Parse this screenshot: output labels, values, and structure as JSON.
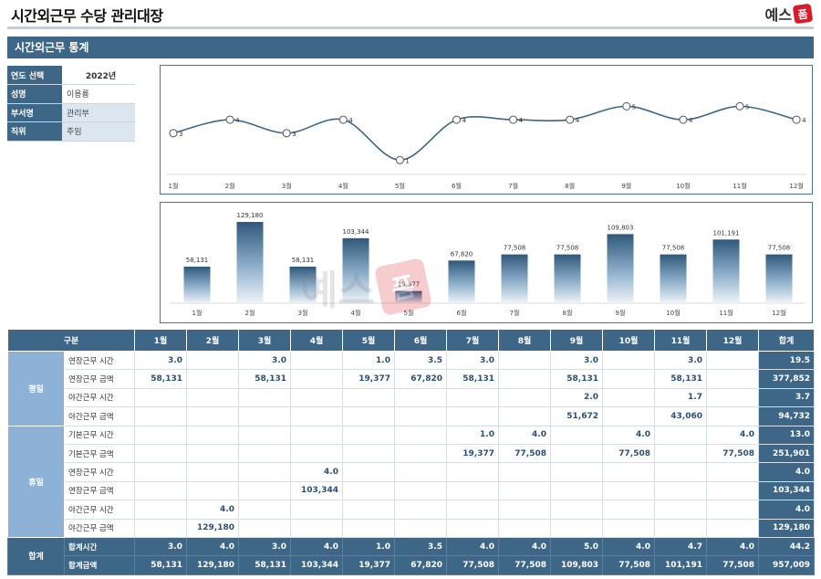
{
  "header": {
    "title": "시간외근무 수당 관리대장",
    "logo_text": "예스",
    "logo_mark": "폼"
  },
  "section": {
    "title": "시간외근무 통계"
  },
  "info": [
    {
      "label": "연도 선택",
      "value": "2022년"
    },
    {
      "label": "성명",
      "value": "이용룡"
    },
    {
      "label": "부서명",
      "value": "관리부"
    },
    {
      "label": "직위",
      "value": "주임"
    }
  ],
  "watermark": {
    "text": "예스",
    "mark": "폼"
  },
  "colors": {
    "primary": "#3e6686",
    "group": "#8eb2d6",
    "value_text": "#2a4f78",
    "line": "#3e6686"
  },
  "chart_data": [
    {
      "type": "line",
      "categories": [
        "1월",
        "2월",
        "3월",
        "4월",
        "5월",
        "6월",
        "7월",
        "8월",
        "9월",
        "10월",
        "11월",
        "12월"
      ],
      "values": [
        3,
        4,
        3,
        4,
        1,
        4,
        4,
        4,
        5,
        4,
        5,
        4
      ],
      "title": "",
      "xlabel": "",
      "ylabel": "",
      "ylim": [
        0,
        6
      ],
      "grid": false
    },
    {
      "type": "bar",
      "categories": [
        "1월",
        "2월",
        "3월",
        "4월",
        "5월",
        "6월",
        "7월",
        "8월",
        "9월",
        "10월",
        "11월",
        "12월"
      ],
      "values": [
        58131,
        129180,
        58131,
        103344,
        19377,
        67820,
        77508,
        77508,
        109803,
        77508,
        101191,
        77508
      ],
      "labels": [
        "58,131",
        "129,180",
        "58,131",
        "103,344",
        "19,377",
        "67,820",
        "77,508",
        "77,508",
        "109,803",
        "77,508",
        "101,191",
        "77,508"
      ],
      "title": "",
      "xlabel": "",
      "ylabel": "",
      "ylim": [
        0,
        135000
      ],
      "grid": false
    }
  ],
  "table": {
    "header": [
      "구분",
      "1월",
      "2월",
      "3월",
      "4월",
      "5월",
      "6월",
      "7월",
      "8월",
      "9월",
      "10월",
      "11월",
      "12월",
      "합계"
    ],
    "groups": [
      {
        "name": "평일",
        "rows": [
          {
            "label": "연장근무 시간",
            "cells": [
              "3.0",
              "",
              "3.0",
              "",
              "1.0",
              "3.5",
              "3.0",
              "",
              "3.0",
              "",
              "3.0",
              "",
              "19.5"
            ]
          },
          {
            "label": "연장근무 금액",
            "cells": [
              "58,131",
              "",
              "58,131",
              "",
              "19,377",
              "67,820",
              "58,131",
              "",
              "58,131",
              "",
              "58,131",
              "",
              "377,852"
            ]
          },
          {
            "label": "야간근무 시간",
            "cells": [
              "",
              "",
              "",
              "",
              "",
              "",
              "",
              "",
              "2.0",
              "",
              "1.7",
              "",
              "3.7"
            ]
          },
          {
            "label": "야간근무 금액",
            "cells": [
              "",
              "",
              "",
              "",
              "",
              "",
              "",
              "",
              "51,672",
              "",
              "43,060",
              "",
              "94,732"
            ]
          }
        ]
      },
      {
        "name": "휴일",
        "rows": [
          {
            "label": "기본근무 시간",
            "cells": [
              "",
              "",
              "",
              "",
              "",
              "",
              "1.0",
              "4.0",
              "",
              "4.0",
              "",
              "4.0",
              "13.0"
            ]
          },
          {
            "label": "기본근무 금액",
            "cells": [
              "",
              "",
              "",
              "",
              "",
              "",
              "19,377",
              "77,508",
              "",
              "77,508",
              "",
              "77,508",
              "251,901"
            ]
          },
          {
            "label": "연장근무 시간",
            "cells": [
              "",
              "",
              "",
              "4.0",
              "",
              "",
              "",
              "",
              "",
              "",
              "",
              "",
              "4.0"
            ]
          },
          {
            "label": "연장근무 금액",
            "cells": [
              "",
              "",
              "",
              "103,344",
              "",
              "",
              "",
              "",
              "",
              "",
              "",
              "",
              "103,344"
            ]
          },
          {
            "label": "야간근무 시간",
            "cells": [
              "",
              "4.0",
              "",
              "",
              "",
              "",
              "",
              "",
              "",
              "",
              "",
              "",
              "4.0"
            ]
          },
          {
            "label": "야간근무 금액",
            "cells": [
              "",
              "129,180",
              "",
              "",
              "",
              "",
              "",
              "",
              "",
              "",
              "",
              "",
              "129,180"
            ]
          }
        ]
      },
      {
        "name": "합계",
        "sum": true,
        "rows": [
          {
            "label": "합계시간",
            "cells": [
              "3.0",
              "4.0",
              "3.0",
              "4.0",
              "1.0",
              "3.5",
              "4.0",
              "4.0",
              "5.0",
              "4.0",
              "4.7",
              "4.0",
              "44.2"
            ]
          },
          {
            "label": "합계금액",
            "cells": [
              "58,131",
              "129,180",
              "58,131",
              "103,344",
              "19,377",
              "67,820",
              "77,508",
              "77,508",
              "109,803",
              "77,508",
              "101,191",
              "77,508",
              "957,009"
            ]
          }
        ]
      }
    ]
  }
}
